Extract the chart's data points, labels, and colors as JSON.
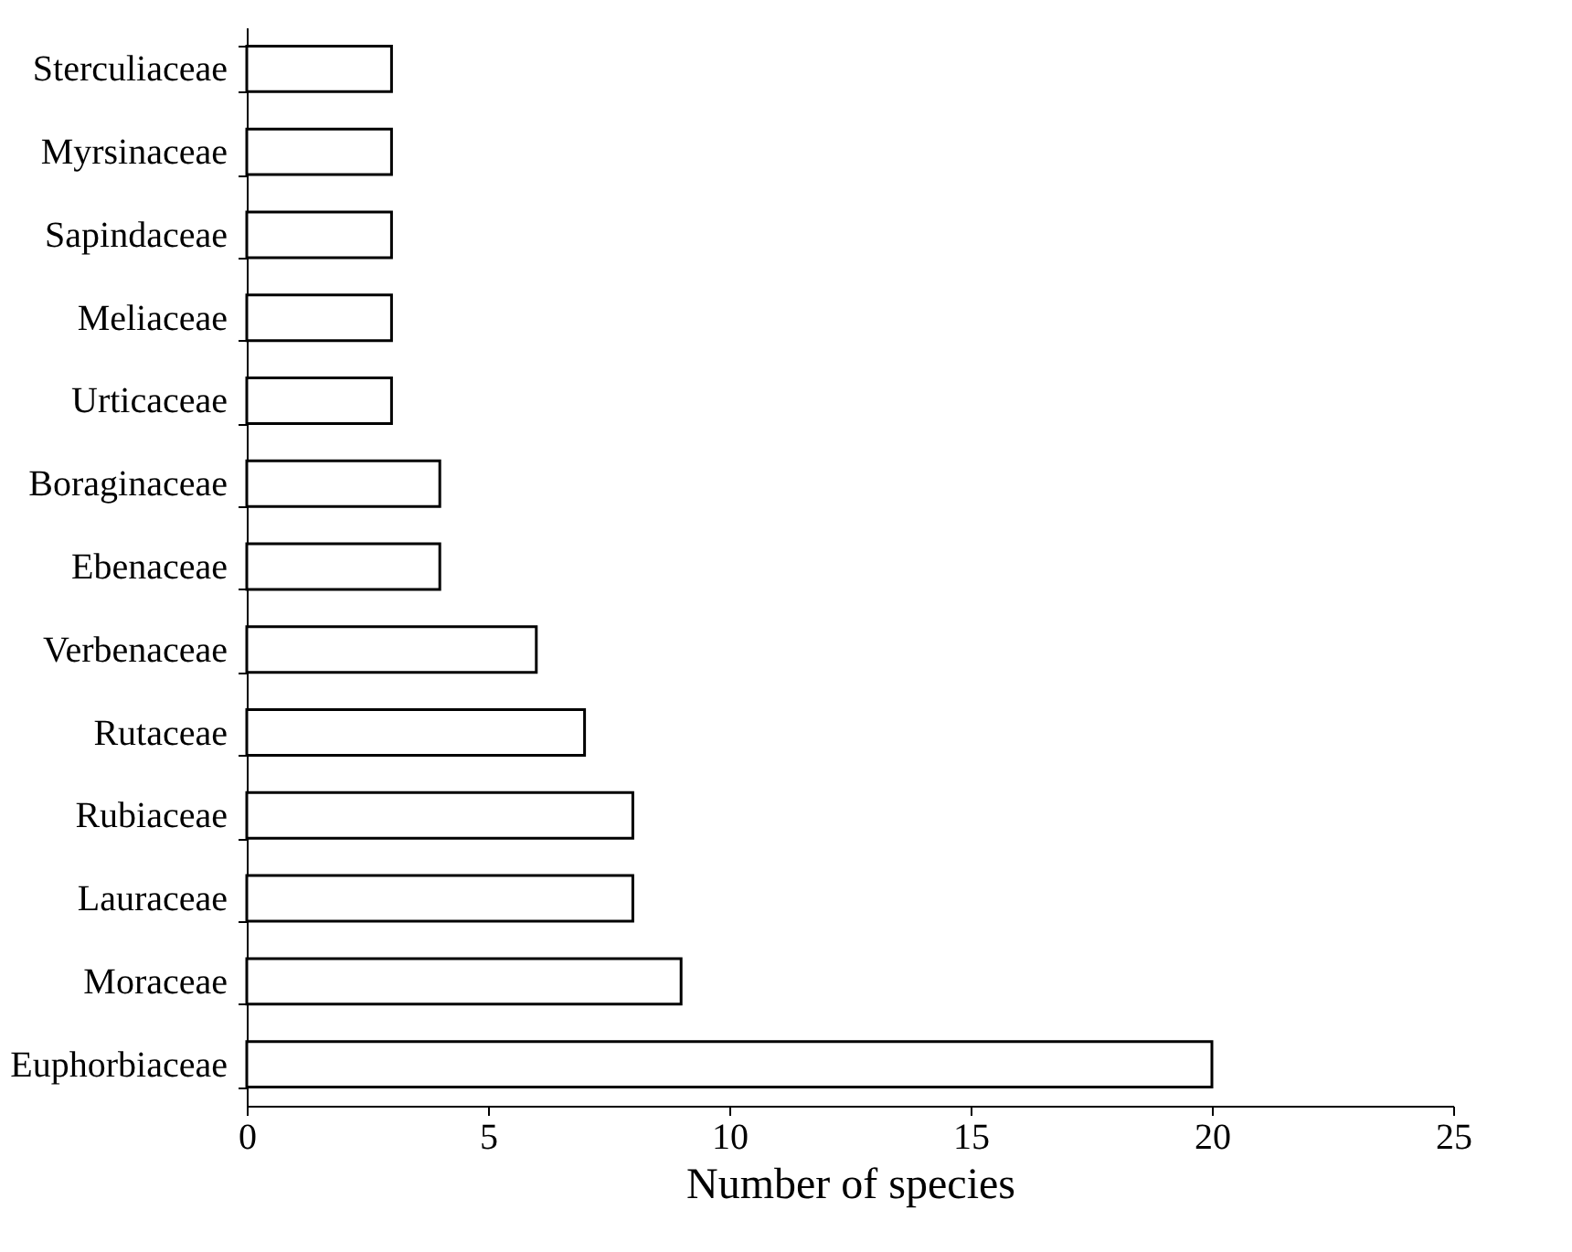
{
  "chart_data": {
    "type": "bar",
    "orientation": "horizontal",
    "xlabel": "Number of species",
    "categories": [
      "Sterculiaceae",
      "Myrsinaceae",
      "Sapindaceae",
      "Meliaceae",
      "Urticaceae",
      "Boraginaceae",
      "Ebenaceae",
      "Verbenaceae",
      "Rutaceae",
      "Rubiaceae",
      "Lauraceae",
      "Moraceae",
      "Euphorbiaceae"
    ],
    "values": [
      3,
      3,
      3,
      3,
      3,
      4,
      4,
      6,
      7,
      8,
      8,
      9,
      20
    ],
    "color": "#ffffff",
    "xlim": [
      0,
      25
    ],
    "xticks": [
      0,
      5,
      10,
      15,
      20,
      25
    ],
    "grid": false
  }
}
